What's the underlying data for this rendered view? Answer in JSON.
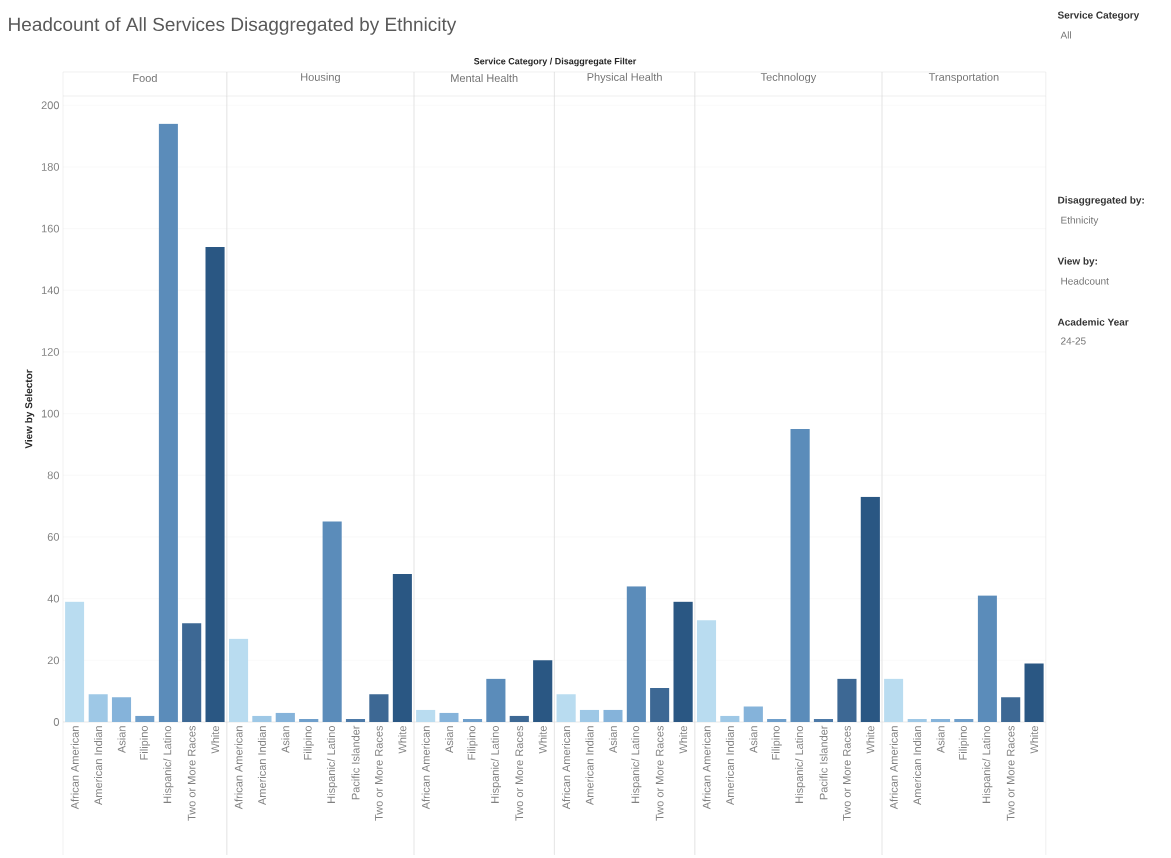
{
  "chart_data": [
    {
      "type": "bar",
      "title": "Food",
      "ylabel": "View by Selector",
      "annotations": [
        "Headcount of All Services Disaggregated by Ethnicity",
        "Service Category  /  Disaggregate Filter"
      ],
      "categories": [
        "African American",
        "American Indian",
        "Asian",
        "Filipino",
        "Hispanic/ Latino",
        "Two or More Races",
        "White"
      ],
      "values": [
        39,
        9,
        8,
        2,
        194,
        32,
        154
      ],
      "colors": [
        "#b9dcf0",
        "#9ec8e6",
        "#85b3da",
        "#6f9fcb",
        "#5b8cba",
        "#3d6894",
        "#2a5783"
      ],
      "ylim": [
        0,
        203
      ],
      "yticks": [
        0,
        20,
        40,
        60,
        80,
        100,
        120,
        140,
        160,
        180,
        200
      ],
      "grid": "y"
    },
    {
      "type": "bar",
      "title": "Housing",
      "categories": [
        "African American",
        "American Indian",
        "Asian",
        "Filipino",
        "Hispanic/ Latino",
        "Pacific Islander",
        "Two or More Races",
        "White"
      ],
      "values": [
        27,
        2,
        3,
        1,
        65,
        1,
        9,
        48
      ],
      "colors": [
        "#b9dcf0",
        "#9ec8e6",
        "#85b3da",
        "#6f9fcb",
        "#5b8cba",
        "#4d7aa8",
        "#3d6894",
        "#2a5783"
      ],
      "ylim": [
        0,
        203
      ],
      "yticks": [
        0,
        20,
        40,
        60,
        80,
        100,
        120,
        140,
        160,
        180,
        200
      ],
      "grid": "y",
      "tick_labels": "x"
    },
    {
      "type": "bar",
      "title": "Mental Health",
      "categories": [
        "African American",
        "Asian",
        "Filipino",
        "Hispanic/ Latino",
        "Two or More Races",
        "White"
      ],
      "values": [
        4,
        3,
        1,
        14,
        2,
        20
      ],
      "colors": [
        "#b9dcf0",
        "#85b3da",
        "#6f9fcb",
        "#5b8cba",
        "#3d6894",
        "#2a5783"
      ],
      "ylim": [
        0,
        203
      ],
      "yticks": [
        0,
        20,
        40,
        60,
        80,
        100,
        120,
        140,
        160,
        180,
        200
      ],
      "grid": "y",
      "tick_labels": "x"
    },
    {
      "type": "bar",
      "title": "Physical Health",
      "categories": [
        "African American",
        "American Indian",
        "Asian",
        "Hispanic/ Latino",
        "Two or More Races",
        "White"
      ],
      "values": [
        9,
        4,
        4,
        44,
        11,
        39
      ],
      "colors": [
        "#b9dcf0",
        "#9ec8e6",
        "#85b3da",
        "#5b8cba",
        "#3d6894",
        "#2a5783"
      ],
      "ylim": [
        0,
        203
      ],
      "yticks": [
        0,
        20,
        40,
        60,
        80,
        100,
        120,
        140,
        160,
        180,
        200
      ],
      "grid": "y",
      "tick_labels": "x"
    },
    {
      "type": "bar",
      "title": "Technology",
      "categories": [
        "African American",
        "American Indian",
        "Asian",
        "Filipino",
        "Hispanic/ Latino",
        "Pacific Islander",
        "Two or More Races",
        "White"
      ],
      "values": [
        33,
        2,
        5,
        1,
        95,
        1,
        14,
        73
      ],
      "colors": [
        "#b9dcf0",
        "#9ec8e6",
        "#85b3da",
        "#6f9fcb",
        "#5b8cba",
        "#4d7aa8",
        "#3d6894",
        "#2a5783"
      ],
      "ylim": [
        0,
        203
      ],
      "yticks": [
        0,
        20,
        40,
        60,
        80,
        100,
        120,
        140,
        160,
        180,
        200
      ],
      "grid": "y",
      "tick_labels": "x"
    },
    {
      "type": "bar",
      "title": "Transportation",
      "categories": [
        "African American",
        "American Indian",
        "Asian",
        "Filipino",
        "Hispanic/ Latino",
        "Two or More Races",
        "White"
      ],
      "values": [
        14,
        1,
        1,
        1,
        41,
        8,
        19
      ],
      "colors": [
        "#b9dcf0",
        "#9ec8e6",
        "#85b3da",
        "#6f9fcb",
        "#5b8cba",
        "#3d6894",
        "#2a5783"
      ],
      "ylim": [
        0,
        203
      ],
      "yticks": [
        0,
        20,
        40,
        60,
        80,
        100,
        120,
        140,
        160,
        180,
        200
      ],
      "grid": "y",
      "tick_labels": "x"
    },
    {
      "type": "other",
      "annotations": [
        "**Service Category**",
        "All",
        "**Disaggregated by:**",
        "Ethnicity",
        "**View by:**",
        "Headcount",
        "**Academic Year**",
        "24-25"
      ]
    }
  ]
}
